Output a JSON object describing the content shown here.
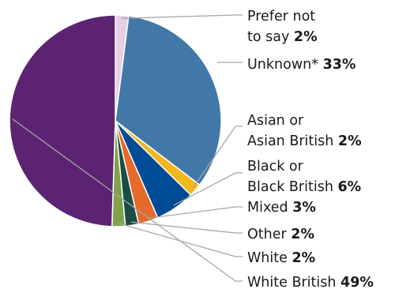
{
  "chart_data": {
    "type": "pie",
    "title": "",
    "start_angle_deg": 0,
    "direction": "clockwise",
    "slices": [
      {
        "name": "Prefer not to say",
        "value": 2,
        "label_lines": [
          "Prefer not",
          "to say"
        ],
        "value_label": "2%",
        "color": "#e6d0e6"
      },
      {
        "name": "Unknown*",
        "value": 33,
        "label_lines": [
          "Unknown*"
        ],
        "value_label": "33%",
        "color": "#4278a8"
      },
      {
        "name": "Asian or Asian British",
        "value": 2,
        "label_lines": [
          "Asian or",
          "Asian British"
        ],
        "value_label": "2%",
        "color": "#f2b71d"
      },
      {
        "name": "Black or Black British",
        "value": 6,
        "label_lines": [
          "Black or",
          "Black British"
        ],
        "value_label": "6%",
        "color": "#004b96"
      },
      {
        "name": "Mixed",
        "value": 3,
        "label_lines": [
          "Mixed"
        ],
        "value_label": "3%",
        "color": "#e56a2c"
      },
      {
        "name": "Other",
        "value": 2,
        "label_lines": [
          "Other"
        ],
        "value_label": "2%",
        "color": "#1b4d43"
      },
      {
        "name": "White",
        "value": 2,
        "label_lines": [
          "White"
        ],
        "value_label": "2%",
        "color": "#7fa24a"
      },
      {
        "name": "White British",
        "value": 49,
        "label_lines": [
          "White British"
        ],
        "value_label": "49%",
        "color": "#5c2372"
      }
    ]
  }
}
